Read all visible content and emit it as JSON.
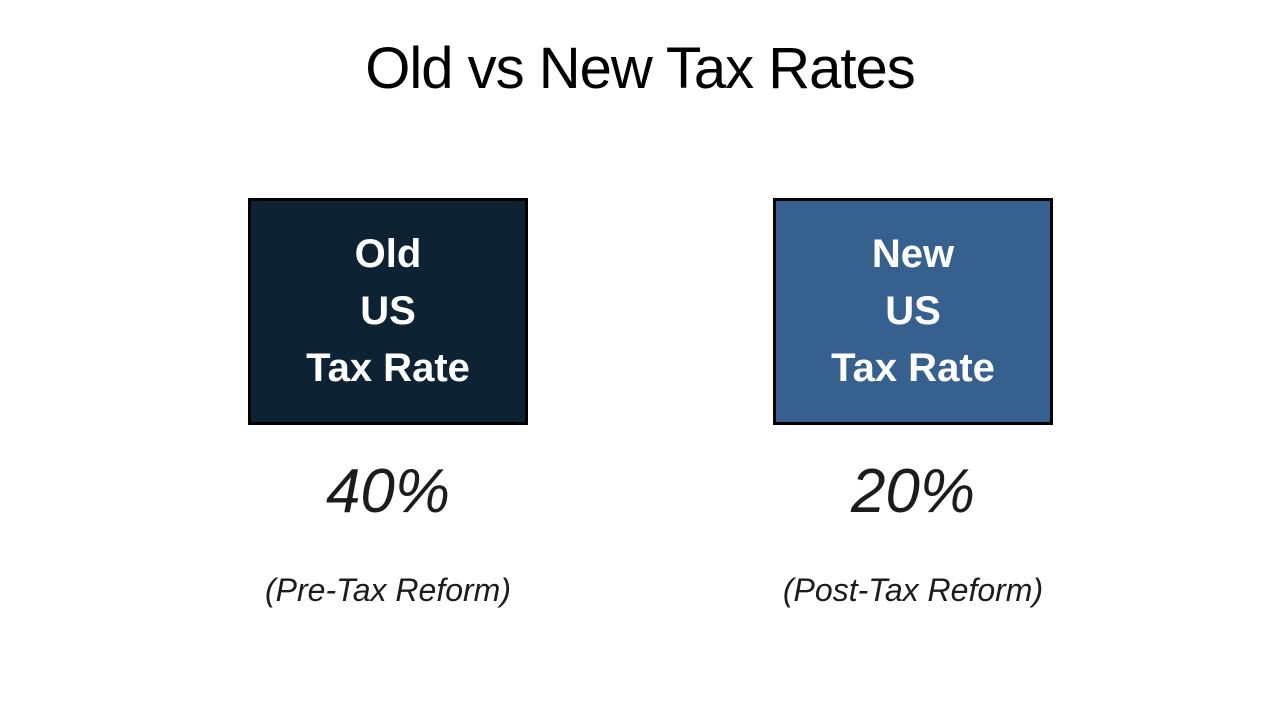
{
  "title": "Old vs New Tax Rates",
  "colors": {
    "background": "#ffffff",
    "title_text": "#000000",
    "box_border": "#000000",
    "box_label_text": "#ffffff",
    "rate_text": "#1c1c1c",
    "old_box_fill": "#0D2333",
    "new_box_fill": "#36618F"
  },
  "comparison": {
    "old": {
      "box": {
        "lines": [
          "Old",
          "US",
          "Tax Rate"
        ],
        "fill": "#0D2333"
      },
      "rate": "40%",
      "caption": "(Pre-Tax Reform)"
    },
    "new": {
      "box": {
        "lines": [
          "New",
          "US",
          "Tax Rate"
        ],
        "fill": "#36618F"
      },
      "rate": "20%",
      "caption": "(Post-Tax Reform)"
    }
  }
}
